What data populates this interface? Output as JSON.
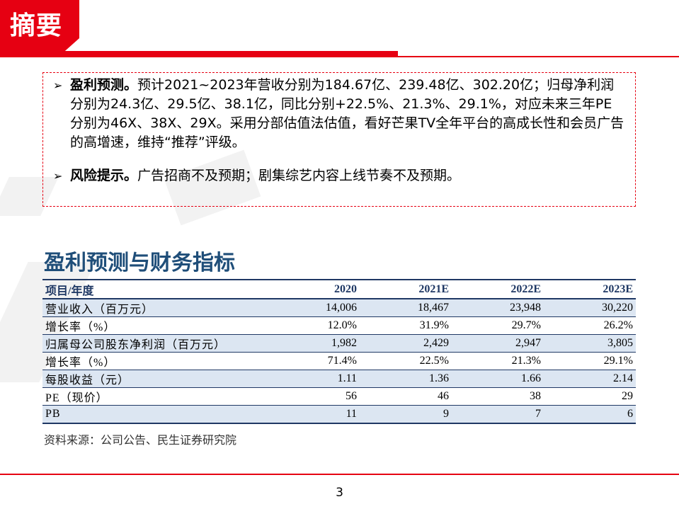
{
  "header": {
    "title": "摘要"
  },
  "summary": {
    "bullet1_label": "盈利预测。",
    "bullet1_text": "预计2021~2023年营收分别为184.67亿、239.48亿、302.20亿；归母净利润分别为24.3亿、29.5亿、38.1亿，同比分别+22.5%、21.3%、29.1%，对应未来三年PE分别为46X、38X、29X。采用分部估值法估值，看好芒果TV全年平台的高成长性和会员广告的高增速，维持“推荐”评级。",
    "bullet2_label": "风险提示。",
    "bullet2_text": "广告招商不及预期；剧集综艺内容上线节奏不及预期。"
  },
  "section": {
    "title": "盈利预测与财务指标"
  },
  "table": {
    "headers": [
      "项目/年度",
      "2020",
      "2021E",
      "2022E",
      "2023E"
    ],
    "rows": [
      [
        "营业收入（百万元）",
        "14,006",
        "18,467",
        "23,948",
        "30,220"
      ],
      [
        "增长率（%）",
        "12.0%",
        "31.9%",
        "29.7%",
        "26.2%"
      ],
      [
        "归属母公司股东净利润（百万元）",
        "1,982",
        "2,429",
        "2,947",
        "3,805"
      ],
      [
        "增长率（%）",
        "71.4%",
        "22.5%",
        "21.3%",
        "29.1%"
      ],
      [
        "每股收益（元）",
        "1.11",
        "1.36",
        "1.66",
        "2.14"
      ],
      [
        "PE（现价）",
        "56",
        "46",
        "38",
        "29"
      ],
      [
        "PB",
        "11",
        "9",
        "7",
        "6"
      ]
    ]
  },
  "source": "资料来源：公司公告、民生证券研究院",
  "page_number": "3",
  "colors": {
    "brand_red": "#e60012",
    "navy": "#1f3864",
    "title_blue": "#1f4e79",
    "row_shade": "#dce6f2"
  }
}
